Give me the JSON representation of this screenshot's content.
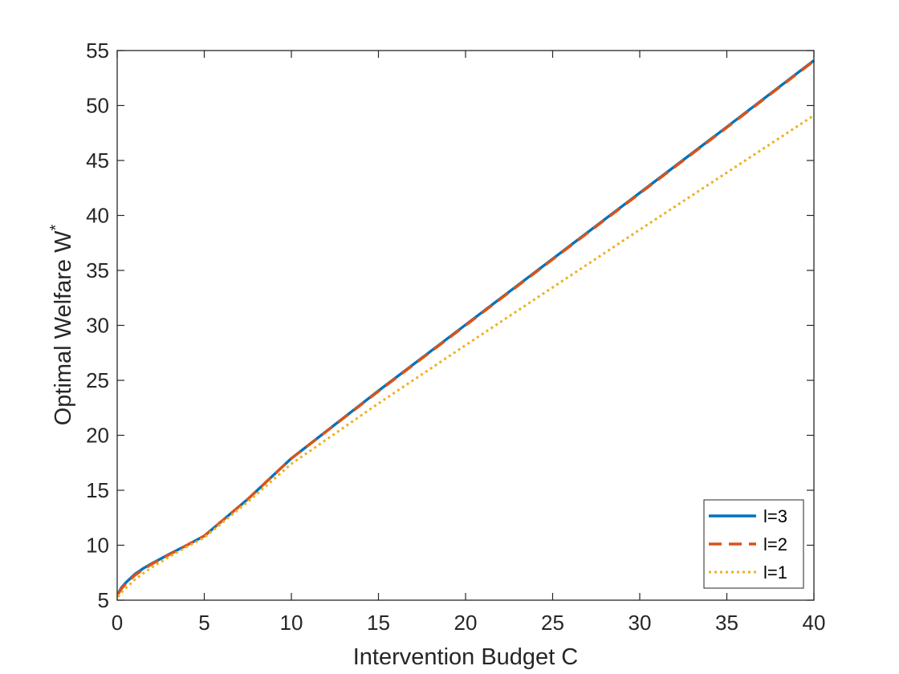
{
  "chart_data": {
    "type": "line",
    "title": "",
    "xlabel": "Intervention Budget C",
    "ylabel": "Optimal Welfare W",
    "ylabel_superscript": "*",
    "xlim": [
      0,
      40
    ],
    "ylim": [
      5,
      55
    ],
    "xticks": [
      0,
      5,
      10,
      15,
      20,
      25,
      30,
      35,
      40
    ],
    "yticks": [
      5,
      10,
      15,
      20,
      25,
      30,
      35,
      40,
      45,
      50,
      55
    ],
    "grid": false,
    "legend_position": "bottom-right",
    "series": [
      {
        "name": "l=3",
        "color": "#0072BD",
        "style": "solid",
        "x": [
          0.05,
          0.25,
          0.5,
          1,
          1.5,
          2,
          3,
          4,
          5,
          7.5,
          10,
          15,
          20,
          25,
          30,
          35,
          40
        ],
        "y": [
          5.6,
          6.15,
          6.6,
          7.35,
          7.9,
          8.35,
          9.2,
          10.0,
          10.85,
          14.2,
          17.9,
          24.05,
          30.05,
          36.05,
          42.05,
          48.05,
          54.1
        ]
      },
      {
        "name": "l=2",
        "color": "#D95319",
        "style": "dashed",
        "x": [
          0.05,
          0.25,
          0.5,
          1,
          1.5,
          2,
          3,
          4,
          5,
          7.5,
          10,
          15,
          20,
          25,
          30,
          35,
          40
        ],
        "y": [
          5.55,
          6.05,
          6.5,
          7.25,
          7.8,
          8.3,
          9.15,
          10.0,
          10.85,
          14.2,
          17.9,
          24.0,
          30.0,
          36.0,
          42.0,
          48.0,
          54.05
        ]
      },
      {
        "name": "l=1",
        "color": "#EDB120",
        "style": "dotted",
        "x": [
          0.05,
          0.25,
          0.5,
          1,
          1.5,
          2,
          3,
          4,
          5,
          7.5,
          10,
          15,
          20,
          25,
          30,
          35,
          40
        ],
        "y": [
          5.3,
          5.7,
          6.1,
          6.85,
          7.45,
          8.0,
          8.95,
          9.85,
          10.7,
          13.95,
          17.4,
          22.9,
          28.2,
          33.45,
          38.7,
          43.9,
          49.1
        ]
      }
    ]
  }
}
